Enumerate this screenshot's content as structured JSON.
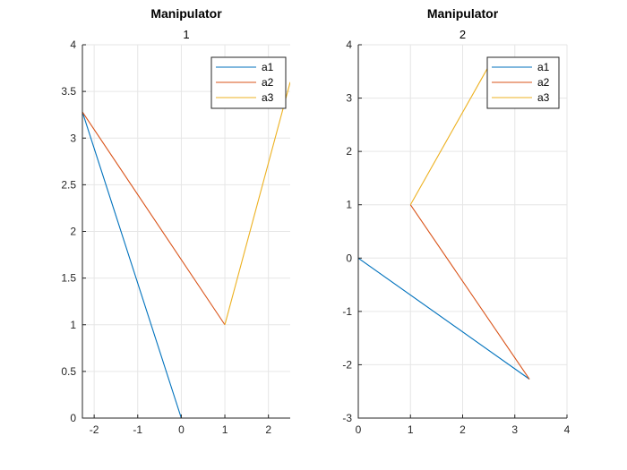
{
  "chart_data": [
    {
      "type": "line",
      "title": "Manipulator",
      "subtitle": "1",
      "xlim": [
        -2.27,
        2.5
      ],
      "ylim": [
        0,
        4
      ],
      "xticks": [
        -2,
        -1,
        0,
        1,
        2
      ],
      "yticks": [
        0,
        0.5,
        1,
        1.5,
        2,
        2.5,
        3,
        3.5,
        4
      ],
      "xtick_labels": [
        "-2",
        "-1",
        "0",
        "1",
        "2"
      ],
      "ytick_labels": [
        "0",
        "0.5",
        "1",
        "1.5",
        "2",
        "2.5",
        "3",
        "3.5",
        "4"
      ],
      "grid": true,
      "legend_position": "top-right",
      "series": [
        {
          "name": "a1",
          "color": "#0072BD",
          "x": [
            0,
            -2.27
          ],
          "y": [
            0,
            3.28
          ]
        },
        {
          "name": "a2",
          "color": "#D95319",
          "x": [
            -2.27,
            1
          ],
          "y": [
            3.28,
            1
          ]
        },
        {
          "name": "a3",
          "color": "#EDB120",
          "x": [
            1,
            2.5
          ],
          "y": [
            1,
            3.6
          ]
        }
      ]
    },
    {
      "type": "line",
      "title": "Manipulator",
      "subtitle": "2",
      "xlim": [
        0,
        4
      ],
      "ylim": [
        -3,
        4
      ],
      "xticks": [
        0,
        1,
        2,
        3,
        4
      ],
      "yticks": [
        -3,
        -2,
        -1,
        0,
        1,
        2,
        3,
        4
      ],
      "xtick_labels": [
        "0",
        "1",
        "2",
        "3",
        "4"
      ],
      "ytick_labels": [
        "-3",
        "-2",
        "-1",
        "0",
        "1",
        "2",
        "3",
        "4"
      ],
      "grid": true,
      "legend_position": "top-right",
      "series": [
        {
          "name": "a1",
          "color": "#0072BD",
          "x": [
            0,
            3.28
          ],
          "y": [
            0,
            -2.27
          ]
        },
        {
          "name": "a2",
          "color": "#D95319",
          "x": [
            3.28,
            1
          ],
          "y": [
            -2.27,
            1
          ]
        },
        {
          "name": "a3",
          "color": "#EDB120",
          "x": [
            1,
            2.5
          ],
          "y": [
            1,
            3.6
          ]
        }
      ]
    }
  ]
}
